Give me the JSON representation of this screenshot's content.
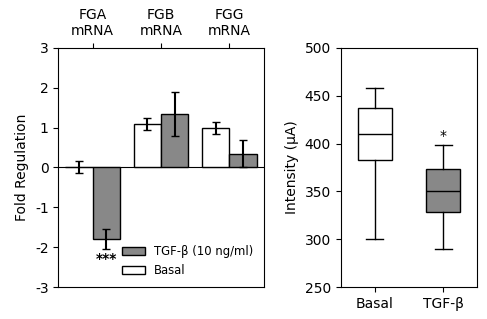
{
  "chart_data": [
    {
      "type": "bar",
      "categories": [
        "FGA\nmRNA",
        "FGB\nmRNA",
        "FGG\nmRNA"
      ],
      "ylabel": "Fold Regulation",
      "ylim": [
        -3,
        3
      ],
      "yticks": [
        -3,
        -2,
        -1,
        0,
        1,
        2,
        3
      ],
      "series": [
        {
          "name": "Basal",
          "color": "#ffffff",
          "values": [
            0.0,
            1.1,
            1.0
          ],
          "errors": [
            0.15,
            0.15,
            0.15
          ]
        },
        {
          "name": "TGF-β (10 ng/ml)",
          "color": "#888888",
          "values": [
            -1.8,
            1.35,
            0.35
          ],
          "errors": [
            0.25,
            0.55,
            0.35
          ]
        }
      ],
      "annotations": [
        {
          "text": "***",
          "category": "FGA\nmRNA",
          "series": "TGF-β (10 ng/ml)"
        }
      ],
      "legend": "lower right"
    },
    {
      "type": "box",
      "categories": [
        "Basal",
        "TGF-β"
      ],
      "ylabel": "Intensity (μA)",
      "ylim": [
        250,
        500
      ],
      "yticks": [
        250,
        300,
        350,
        400,
        450,
        500
      ],
      "colors": [
        "#ffffff",
        "#888888"
      ],
      "boxes": [
        {
          "med": 410,
          "q1": 383,
          "q3": 437,
          "whislo": 300,
          "whishi": 458
        },
        {
          "med": 350,
          "q1": 328,
          "q3": 373,
          "whislo": 290,
          "whishi": 398
        }
      ],
      "annotations": [
        {
          "text": "*",
          "category": "TGF-β"
        }
      ]
    }
  ]
}
